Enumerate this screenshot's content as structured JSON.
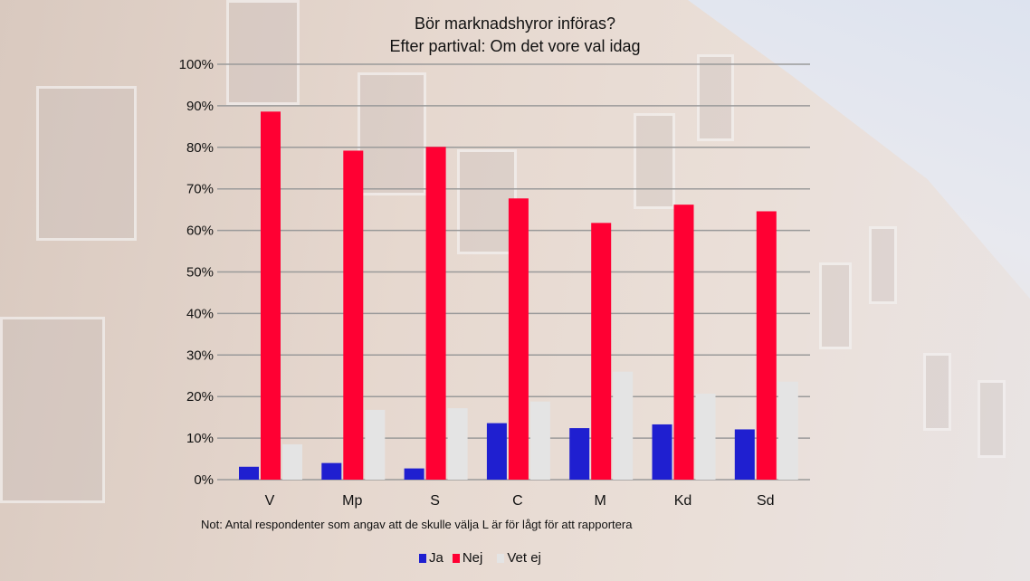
{
  "chart_data": {
    "type": "bar",
    "title": "Bör marknadshyror införas?",
    "subtitle": "Efter partival: Om det vore val idag",
    "categories": [
      "V",
      "Mp",
      "S",
      "C",
      "M",
      "Kd",
      "Sd"
    ],
    "series": [
      {
        "name": "Ja",
        "color": "#1f1fd0",
        "values": [
          3.1,
          4.0,
          2.7,
          13.6,
          12.4,
          13.3,
          12.1
        ]
      },
      {
        "name": "Nej",
        "color": "#ff0033",
        "values": [
          88.6,
          79.2,
          80.1,
          67.7,
          61.8,
          66.2,
          64.6
        ]
      },
      {
        "name": "Vet ej",
        "color": "#e4e4e4",
        "values": [
          8.5,
          16.8,
          17.2,
          18.8,
          26.0,
          20.7,
          23.6
        ]
      }
    ],
    "y_ticks": [
      "0%",
      "10%",
      "20%",
      "30%",
      "40%",
      "50%",
      "60%",
      "70%",
      "80%",
      "90%",
      "100%"
    ],
    "ylim": [
      0,
      100
    ],
    "grid": true,
    "legend_position": "bottom",
    "note": "Not: Antal respondenter som angav att de skulle välja  L är för lågt för att rapportera"
  }
}
